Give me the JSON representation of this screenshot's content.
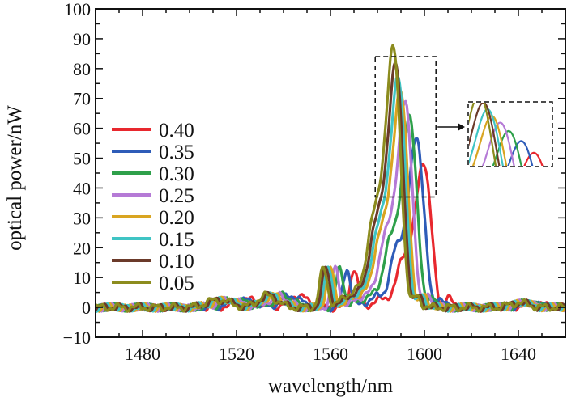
{
  "chart_data": {
    "type": "line",
    "title": "",
    "xlabel": "wavelength/nm",
    "ylabel": "optical power/nW",
    "xlim": [
      1460,
      1660
    ],
    "ylim": [
      -10,
      100
    ],
    "xticks": [
      1480,
      1520,
      1560,
      1600,
      1640
    ],
    "yticks": [
      -10,
      0,
      10,
      20,
      30,
      40,
      50,
      60,
      70,
      80,
      90,
      100
    ],
    "grid": false,
    "legend_position": "left",
    "series": [
      {
        "name": "0.40",
        "color": "#e8282e",
        "peak_x": 1600,
        "peak_y": 45
      },
      {
        "name": "0.35",
        "color": "#2e5cb8",
        "peak_x": 1597,
        "peak_y": 52
      },
      {
        "name": "0.30",
        "color": "#2ea04a",
        "peak_x": 1594,
        "peak_y": 58
      },
      {
        "name": "0.25",
        "color": "#b57ad6",
        "peak_x": 1592,
        "peak_y": 63
      },
      {
        "name": "0.20",
        "color": "#d9a521",
        "peak_x": 1590,
        "peak_y": 67
      },
      {
        "name": "0.15",
        "color": "#3fc4c4",
        "peak_x": 1589,
        "peak_y": 71
      },
      {
        "name": "0.10",
        "color": "#6b3a2a",
        "peak_x": 1588,
        "peak_y": 75
      },
      {
        "name": "0.05",
        "color": "#8c8c1e",
        "peak_x": 1587,
        "peak_y": 80
      }
    ],
    "annotations": [
      {
        "type": "dashed-box",
        "x_range": [
          1578,
          1598
        ],
        "y_range": [
          37,
          84
        ]
      },
      {
        "type": "arrow",
        "target": "inset"
      },
      {
        "type": "inset",
        "content": "zoom of peak region"
      }
    ]
  }
}
